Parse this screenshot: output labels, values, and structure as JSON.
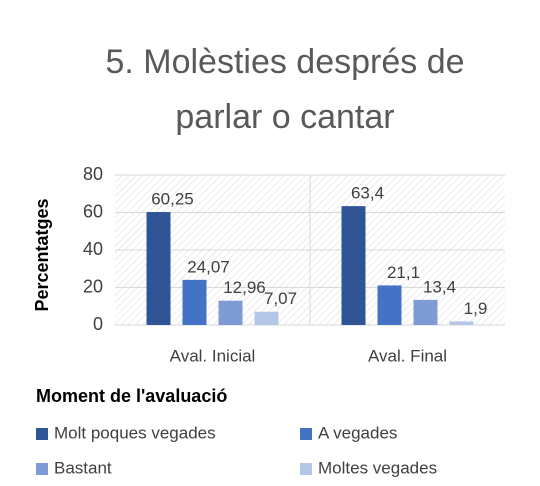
{
  "chart_data": {
    "type": "bar",
    "title_lines": [
      "5. Molèsties després de",
      "parlar o cantar"
    ],
    "y_label": "Percentatges",
    "x_label": "Moment de l'avaluació",
    "categories": [
      "Aval. Inicial",
      "Aval. Final"
    ],
    "series": [
      {
        "name": "Molt poques vegades",
        "color": "#2f5597",
        "values": [
          60.25,
          63.4
        ],
        "value_labels": [
          "60,25",
          "63,4"
        ]
      },
      {
        "name": "A vegades",
        "color": "#4472c4",
        "values": [
          24.07,
          21.1
        ],
        "value_labels": [
          "24,07",
          "21,1"
        ]
      },
      {
        "name": "Bastant",
        "color": "#7f9bd6",
        "values": [
          12.96,
          13.4
        ],
        "value_labels": [
          "12,96",
          "13,4"
        ]
      },
      {
        "name": "Moltes vegades",
        "color": "#b4c7e7",
        "values": [
          7.07,
          1.9
        ],
        "value_labels": [
          "7,07",
          "1,9"
        ]
      }
    ],
    "ylim": [
      0,
      80
    ],
    "yticks": [
      0,
      20,
      40,
      60,
      80
    ],
    "grid": true,
    "legend": "bottom"
  }
}
